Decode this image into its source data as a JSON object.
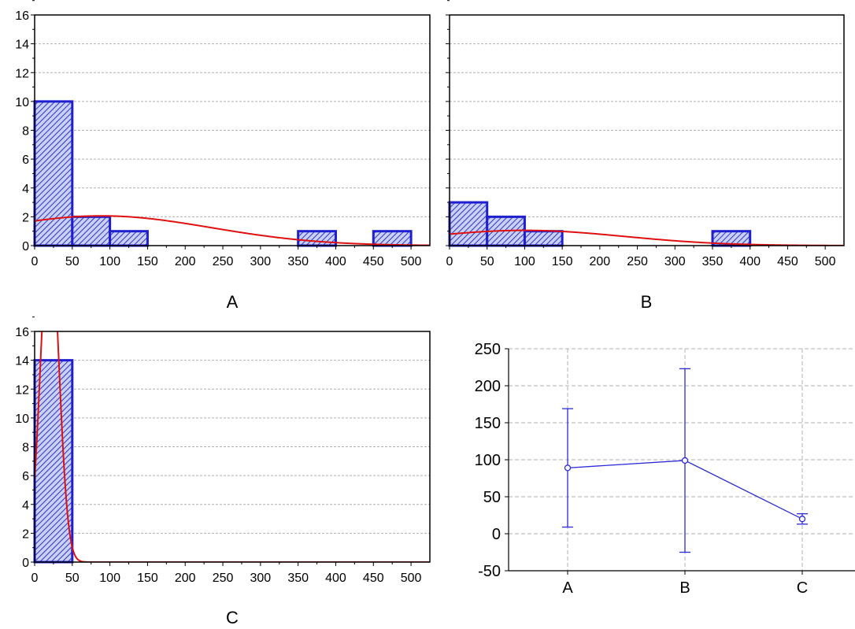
{
  "chart_data": [
    {
      "id": "A",
      "type": "bar",
      "caption": "A",
      "x_ticks": [
        "0",
        "50",
        "100",
        "150",
        "200",
        "250",
        "300",
        "350",
        "400",
        "450",
        "500"
      ],
      "y_ticks": [
        "0",
        "2",
        "4",
        "6",
        "8",
        "10",
        "12",
        "14",
        "16"
      ],
      "xlim": [
        0,
        525
      ],
      "ylim": [
        0,
        16
      ],
      "bin_width": 50,
      "bins": [
        {
          "start": 0,
          "end": 50,
          "count": 10
        },
        {
          "start": 50,
          "end": 100,
          "count": 2
        },
        {
          "start": 100,
          "end": 150,
          "count": 1
        },
        {
          "start": 350,
          "end": 400,
          "count": 1
        },
        {
          "start": 450,
          "end": 500,
          "count": 1
        }
      ],
      "fit_curve": {
        "type": "normal",
        "mean": 89,
        "sd": 145,
        "n": 15
      },
      "grid": true
    },
    {
      "id": "B",
      "type": "bar",
      "caption": "B",
      "x_ticks": [
        "0",
        "50",
        "100",
        "150",
        "200",
        "250",
        "300",
        "350",
        "400",
        "450",
        "500"
      ],
      "y_ticks": [],
      "xlim": [
        0,
        525
      ],
      "ylim": [
        0,
        16
      ],
      "bin_width": 50,
      "bins": [
        {
          "start": 0,
          "end": 50,
          "count": 3
        },
        {
          "start": 50,
          "end": 100,
          "count": 2
        },
        {
          "start": 100,
          "end": 150,
          "count": 1
        },
        {
          "start": 350,
          "end": 400,
          "count": 1
        }
      ],
      "fit_curve": {
        "type": "normal",
        "mean": 100,
        "sd": 132,
        "n": 7
      },
      "grid": true
    },
    {
      "id": "C",
      "type": "bar",
      "caption": "C",
      "x_ticks": [
        "0",
        "50",
        "100",
        "150",
        "200",
        "250",
        "300",
        "350",
        "400",
        "450",
        "500"
      ],
      "y_ticks": [
        "0",
        "2",
        "4",
        "6",
        "8",
        "10",
        "12",
        "14",
        "16"
      ],
      "xlim": [
        0,
        525
      ],
      "ylim": [
        0,
        16
      ],
      "bin_width": 50,
      "bins": [
        {
          "start": 0,
          "end": 50,
          "count": 14
        }
      ],
      "fit_curve": {
        "type": "normal",
        "mean": 20,
        "sd": 12,
        "n": 14
      },
      "grid": true
    },
    {
      "id": "D",
      "type": "line",
      "categories": [
        "A",
        "B",
        "C"
      ],
      "y_ticks": [
        "-50",
        "0",
        "50",
        "100",
        "150",
        "200",
        "250"
      ],
      "ylim": [
        -50,
        250
      ],
      "points": [
        {
          "category": "A",
          "value": 89,
          "lower": 9,
          "upper": 169
        },
        {
          "category": "B",
          "value": 99,
          "lower": -25,
          "upper": 223
        },
        {
          "category": "C",
          "value": 20,
          "lower": 13,
          "upper": 27
        }
      ],
      "grid": true
    }
  ],
  "colors": {
    "bar_edge": "#1f1fd0",
    "bar_fill": "#c9d2f0",
    "hatch": "#3a3ad0",
    "fit_curve": "#e01010",
    "mean_series": "#2a2ad8",
    "grid": "#b0b0b0"
  }
}
